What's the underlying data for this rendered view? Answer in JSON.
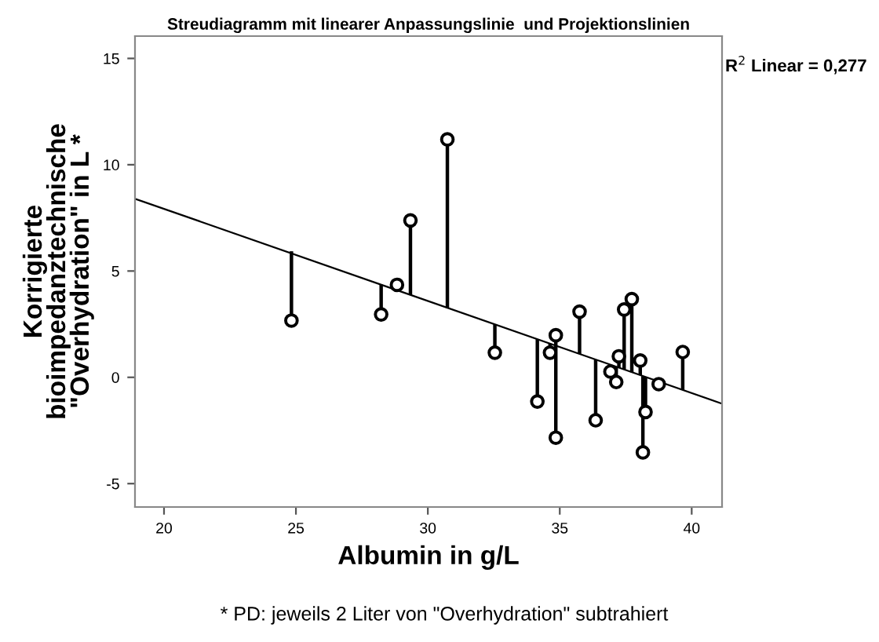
{
  "chart_data": {
    "type": "scatter",
    "title": "Streudiagramm mit linearer Anpassungslinie  und Projektionslinien",
    "xlabel": "Albumin in g/L",
    "ylabel": "Korrigierte\nbioimpedanztechnische\n\"Overhydration\" in L *",
    "xlim": [
      18.9,
      41.15
    ],
    "ylim": [
      -6.1,
      16.05
    ],
    "xticks": [
      20,
      25,
      30,
      35,
      40
    ],
    "yticks": [
      -5,
      0,
      5,
      10,
      15
    ],
    "grid": false,
    "marker": "circle",
    "series": [
      {
        "color": "#000000",
        "x": [
          24.83,
          28.23,
          28.83,
          29.34,
          30.74,
          32.54,
          34.15,
          34.63,
          34.85,
          34.85,
          35.75,
          36.36,
          36.92,
          37.14,
          37.24,
          37.44,
          37.73,
          38.05,
          38.25,
          38.15,
          38.75,
          39.66
        ],
        "values": [
          2.67,
          2.96,
          4.35,
          7.38,
          11.19,
          1.16,
          -1.14,
          1.16,
          1.98,
          -2.84,
          3.09,
          -2.02,
          0.27,
          -0.22,
          0.99,
          3.19,
          3.68,
          0.79,
          -1.63,
          -3.53,
          -0.32,
          1.19
        ],
        "errors": [
          [
            2.67,
            5.93
          ],
          [
            2.96,
            4.36
          ],
          [
            4.1,
            4.35
          ],
          [
            3.88,
            7.38
          ],
          [
            3.27,
            11.19
          ],
          [
            1.16,
            2.49
          ],
          [
            -1.14,
            1.79
          ],
          [
            1.16,
            1.59
          ],
          [
            1.49,
            1.98
          ],
          [
            -2.84,
            1.49
          ],
          [
            1.1,
            3.09
          ],
          [
            -2.02,
            0.84
          ],
          [
            0.27,
            0.59
          ],
          [
            -0.22,
            0.5
          ],
          [
            0.45,
            0.99
          ],
          [
            0.37,
            3.19
          ],
          [
            0.24,
            3.68
          ],
          [
            0.1,
            0.79
          ],
          [
            -1.63,
            0.02
          ],
          [
            -3.53,
            0.06
          ],
          [
            -0.32,
            -0.2
          ],
          [
            -0.59,
            1.19
          ]
        ]
      },
      {
        "type": "line",
        "marker": "none",
        "color": "#000000",
        "x": [
          18.9,
          41.13
        ],
        "values": [
          8.4,
          -1.23
        ]
      }
    ],
    "annotations": [
      "R$^{2}$ Linear = 0,277",
      "* PD: jeweils 2 Liter von \"Overhydration\" subtrahiert"
    ]
  }
}
